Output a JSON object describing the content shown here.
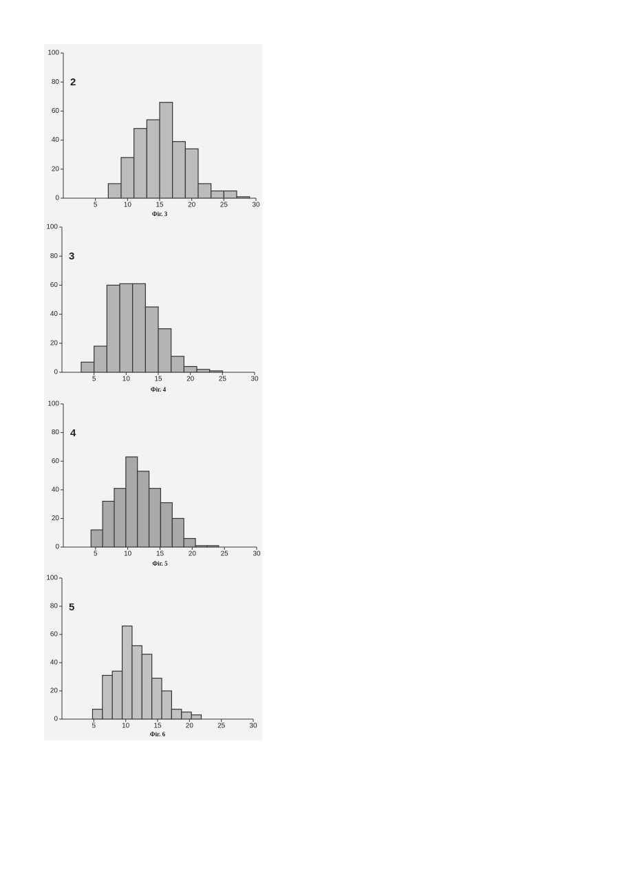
{
  "chart_data": [
    {
      "type": "histogram",
      "label": "2",
      "caption": "Фіг. 3",
      "bins": [
        7,
        9,
        11,
        13,
        15,
        17,
        19,
        21,
        23,
        25,
        27,
        29
      ],
      "values": [
        10,
        28,
        48,
        54,
        66,
        39,
        34,
        10,
        5,
        5,
        1
      ],
      "color": "#bcbcbc",
      "xlim": [
        0,
        30
      ],
      "ylim": [
        0,
        100
      ],
      "xticks": [
        5,
        10,
        15,
        20,
        25,
        30
      ],
      "yticks": [
        0,
        20,
        40,
        60,
        80,
        100
      ]
    },
    {
      "type": "histogram",
      "label": "3",
      "caption": "Фіг. 4",
      "bins": [
        3,
        5,
        7,
        9,
        11,
        13,
        15,
        17,
        19,
        21,
        23,
        25
      ],
      "values": [
        7,
        18,
        60,
        61,
        61,
        45,
        30,
        11,
        4,
        2,
        1
      ],
      "color": "#b4b4b4",
      "xlim": [
        0,
        30
      ],
      "ylim": [
        0,
        100
      ],
      "xticks": [
        5,
        10,
        15,
        20,
        25,
        30
      ],
      "yticks": [
        0,
        20,
        40,
        60,
        80,
        100
      ]
    },
    {
      "type": "histogram",
      "label": "4",
      "caption": "Фіг. 5",
      "bins": [
        4.3,
        6.1,
        7.9,
        9.7,
        11.5,
        13.3,
        15.1,
        16.9,
        18.7,
        20.5,
        22.3,
        24.1
      ],
      "values": [
        12,
        32,
        41,
        63,
        53,
        41,
        31,
        20,
        6,
        1,
        1
      ],
      "color": "#a9a9a9",
      "xlim": [
        0,
        30
      ],
      "ylim": [
        0,
        100
      ],
      "xticks": [
        5,
        10,
        15,
        20,
        25,
        30
      ],
      "yticks": [
        0,
        20,
        40,
        60,
        80,
        100
      ]
    },
    {
      "type": "histogram",
      "label": "5",
      "caption": "Фіг. 6",
      "bins": [
        4.8,
        6.35,
        7.9,
        9.45,
        11,
        12.55,
        14.1,
        15.65,
        17.2,
        18.75,
        20.3,
        21.85
      ],
      "values": [
        7,
        31,
        34,
        66,
        52,
        46,
        29,
        20,
        7,
        5,
        3
      ],
      "color": "#c2c2c2",
      "xlim": [
        0,
        30
      ],
      "ylim": [
        0,
        100
      ],
      "xticks": [
        5,
        10,
        15,
        20,
        25,
        30
      ],
      "yticks": [
        0,
        20,
        40,
        60,
        80,
        100
      ]
    }
  ]
}
